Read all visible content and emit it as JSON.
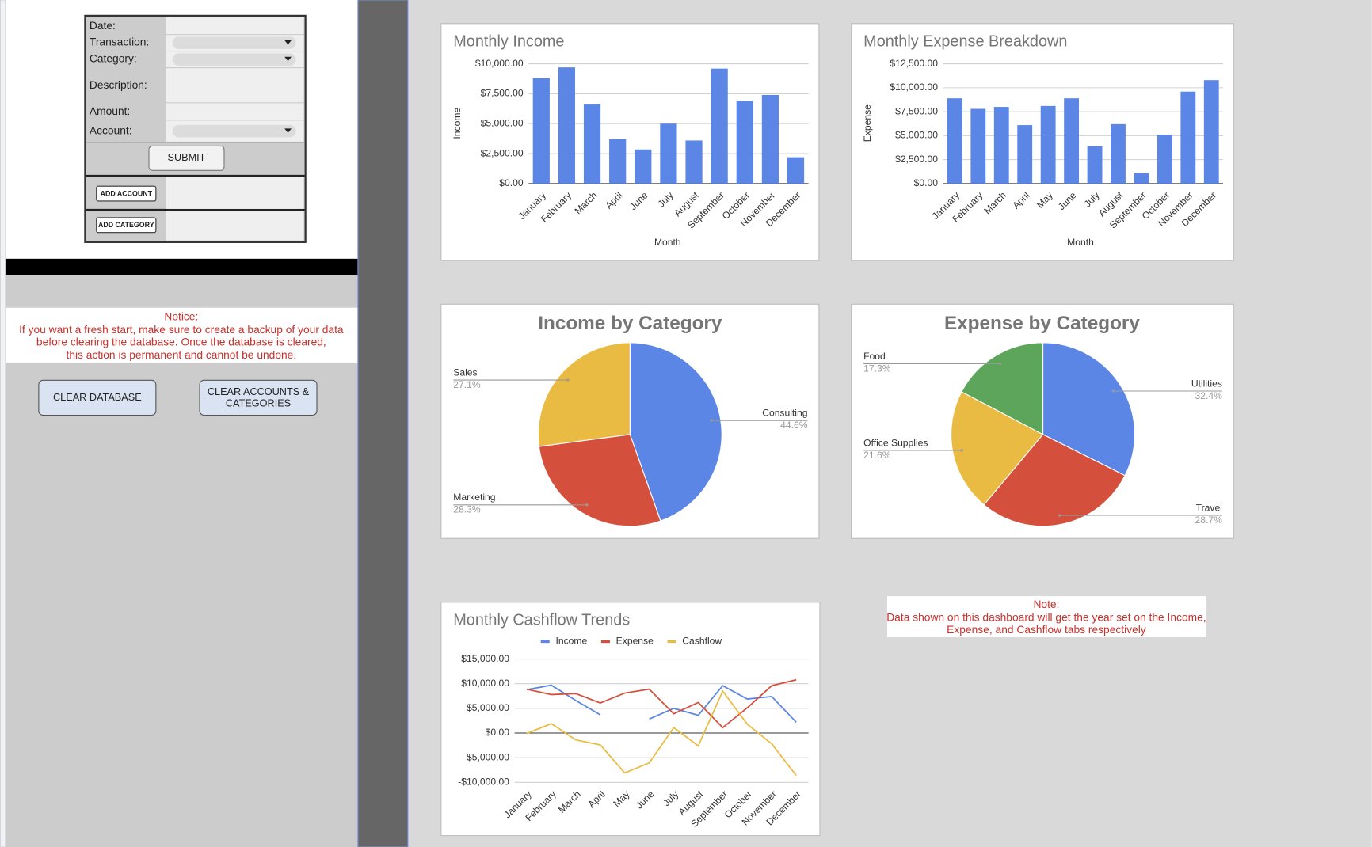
{
  "form": {
    "fields": [
      "Date:",
      "Transaction:",
      "Category:",
      "Description:",
      "Amount:",
      "Account:"
    ],
    "submit": "SUBMIT",
    "add_account": "ADD ACCOUNT",
    "add_category": "ADD CATEGORY"
  },
  "notice": {
    "title": "Notice:",
    "lines": [
      "If you want a fresh start, make sure to create a backup of your data",
      "before clearing the database. Once the database is cleared,",
      "this action is permanent and cannot be undone."
    ]
  },
  "buttons": [
    {
      "lines": [
        "CLEAR DATABASE"
      ]
    },
    {
      "lines": [
        "CLEAR ACCOUNTS &",
        "CATEGORIES"
      ]
    }
  ],
  "note": {
    "title": "Note:",
    "lines": [
      "Data shown on this dashboard will get the year set on the Income,",
      "Expense, and Cashflow tabs respectively"
    ]
  },
  "chart_data": [
    {
      "type": "bar",
      "title": "Monthly Income",
      "x_label": "Month",
      "y_label": "Income",
      "categories": [
        "January",
        "February",
        "March",
        "April",
        "June",
        "July",
        "August",
        "September",
        "October",
        "November",
        "December"
      ],
      "values": [
        8800,
        9700,
        6600,
        3700,
        2850,
        5000,
        3600,
        9600,
        6900,
        7400,
        2200
      ],
      "color": "#5b86e5",
      "ylim": [
        0,
        10000
      ],
      "yticks": [
        {
          "value": 0,
          "label": "$0.00"
        },
        {
          "value": 2500,
          "label": "$2,500.00"
        },
        {
          "value": 5000,
          "label": "$5,000.00"
        },
        {
          "value": 7500,
          "label": "$7,500.00"
        },
        {
          "value": 10000,
          "label": "$10,000.00"
        }
      ],
      "grid": true
    },
    {
      "type": "bar",
      "title": "Monthly Expense Breakdown",
      "x_label": "Month",
      "y_label": "Expense",
      "categories": [
        "January",
        "February",
        "March",
        "April",
        "May",
        "June",
        "July",
        "August",
        "September",
        "October",
        "November",
        "December"
      ],
      "values": [
        8900,
        7800,
        8000,
        6100,
        8100,
        8900,
        3900,
        6200,
        1100,
        5100,
        9600,
        10800
      ],
      "color": "#5b86e5",
      "ylim": [
        0,
        12500
      ],
      "yticks": [
        {
          "value": 0,
          "label": "$0.00"
        },
        {
          "value": 2500,
          "label": "$2,500.00"
        },
        {
          "value": 5000,
          "label": "$5,000.00"
        },
        {
          "value": 7500,
          "label": "$7,500.00"
        },
        {
          "value": 10000,
          "label": "$10,000.00"
        },
        {
          "value": 12500,
          "label": "$12,500.00"
        }
      ],
      "grid": true
    },
    {
      "type": "pie",
      "title": "Income by Category",
      "categories": [
        "Consulting",
        "Marketing",
        "Sales"
      ],
      "values": [
        44.6,
        28.3,
        27.1
      ],
      "value_labels": [
        "44.6%",
        "28.3%",
        "27.1%"
      ],
      "colors": [
        "#5b86e5",
        "#d4503c",
        "#e9bb42"
      ]
    },
    {
      "type": "pie",
      "title": "Expense by Category",
      "categories": [
        "Utilities",
        "Travel",
        "Office Supplies",
        "Food"
      ],
      "values": [
        32.4,
        28.7,
        21.6,
        17.3
      ],
      "value_labels": [
        "32.4%",
        "28.7%",
        "21.6%",
        "17.3%"
      ],
      "colors": [
        "#5b86e5",
        "#d4503c",
        "#e9bb42",
        "#5ca55a"
      ]
    },
    {
      "type": "line",
      "title": "Monthly Cashflow Trends",
      "categories": [
        "January",
        "February",
        "March",
        "April",
        "May",
        "June",
        "July",
        "August",
        "September",
        "October",
        "November",
        "December"
      ],
      "series": [
        {
          "name": "Income",
          "color": "#5b86e5",
          "values": [
            8800,
            9700,
            6600,
            3700,
            null,
            2850,
            5000,
            3600,
            9600,
            6900,
            7400,
            2200
          ]
        },
        {
          "name": "Expense",
          "color": "#d4503c",
          "values": [
            8900,
            7800,
            8000,
            6100,
            8100,
            8900,
            3900,
            6200,
            1100,
            5100,
            9600,
            10800
          ]
        },
        {
          "name": "Cashflow",
          "color": "#e9bb42",
          "values": [
            -100,
            1900,
            -1400,
            -2400,
            -8100,
            -6050,
            1100,
            -2600,
            8500,
            1800,
            -2200,
            -8600
          ]
        }
      ],
      "ylim": [
        -10000,
        15000
      ],
      "yticks": [
        {
          "value": -10000,
          "label": "-$10,000.00"
        },
        {
          "value": -5000,
          "label": "-$5,000.00"
        },
        {
          "value": 0,
          "label": "$0.00"
        },
        {
          "value": 5000,
          "label": "$5,000.00"
        },
        {
          "value": 10000,
          "label": "$10,000.00"
        },
        {
          "value": 15000,
          "label": "$15,000.00"
        }
      ],
      "grid": true,
      "legend": "top"
    }
  ]
}
